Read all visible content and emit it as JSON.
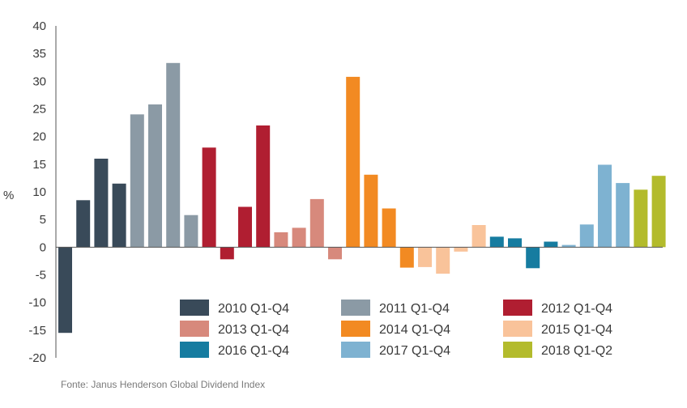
{
  "chart_data": {
    "type": "bar",
    "ylabel": "%",
    "ylim": [
      -20,
      40
    ],
    "yticks": [
      40,
      35,
      30,
      25,
      20,
      15,
      10,
      5,
      0,
      -5,
      -10,
      -15,
      -20
    ],
    "grid": false,
    "legend_position": "bottom-right",
    "source": "Fonte: Janus Henderson Global Dividend Index",
    "series": [
      {
        "name": "2010 Q1-Q4",
        "color": "#394a59",
        "values": [
          -15.5,
          8.5,
          16.0,
          11.5
        ]
      },
      {
        "name": "2011 Q1-Q4",
        "color": "#8b9aa5",
        "values": [
          24.0,
          25.8,
          33.3,
          5.8
        ]
      },
      {
        "name": "2012 Q1-Q4",
        "color": "#b01e31",
        "values": [
          18.0,
          -2.2,
          7.3,
          22.0
        ]
      },
      {
        "name": "2013 Q1-Q4",
        "color": "#d7897c",
        "values": [
          2.7,
          3.5,
          8.7,
          -2.2
        ]
      },
      {
        "name": "2014 Q1-Q4",
        "color": "#f28a22",
        "values": [
          30.8,
          13.1,
          7.0,
          -3.7
        ]
      },
      {
        "name": "2015 Q1-Q4",
        "color": "#f9c39a",
        "values": [
          -3.6,
          -4.8,
          -0.8,
          4.0
        ]
      },
      {
        "name": "2016 Q1-Q4",
        "color": "#167ca0",
        "values": [
          1.9,
          1.6,
          -3.8,
          1.0
        ]
      },
      {
        "name": "2017 Q1-Q4",
        "color": "#7eb2d1",
        "values": [
          0.4,
          4.1,
          14.9,
          11.6
        ]
      },
      {
        "name": "2018 Q1-Q2",
        "color": "#b3bb2c",
        "values": [
          10.4,
          12.9
        ]
      }
    ]
  }
}
